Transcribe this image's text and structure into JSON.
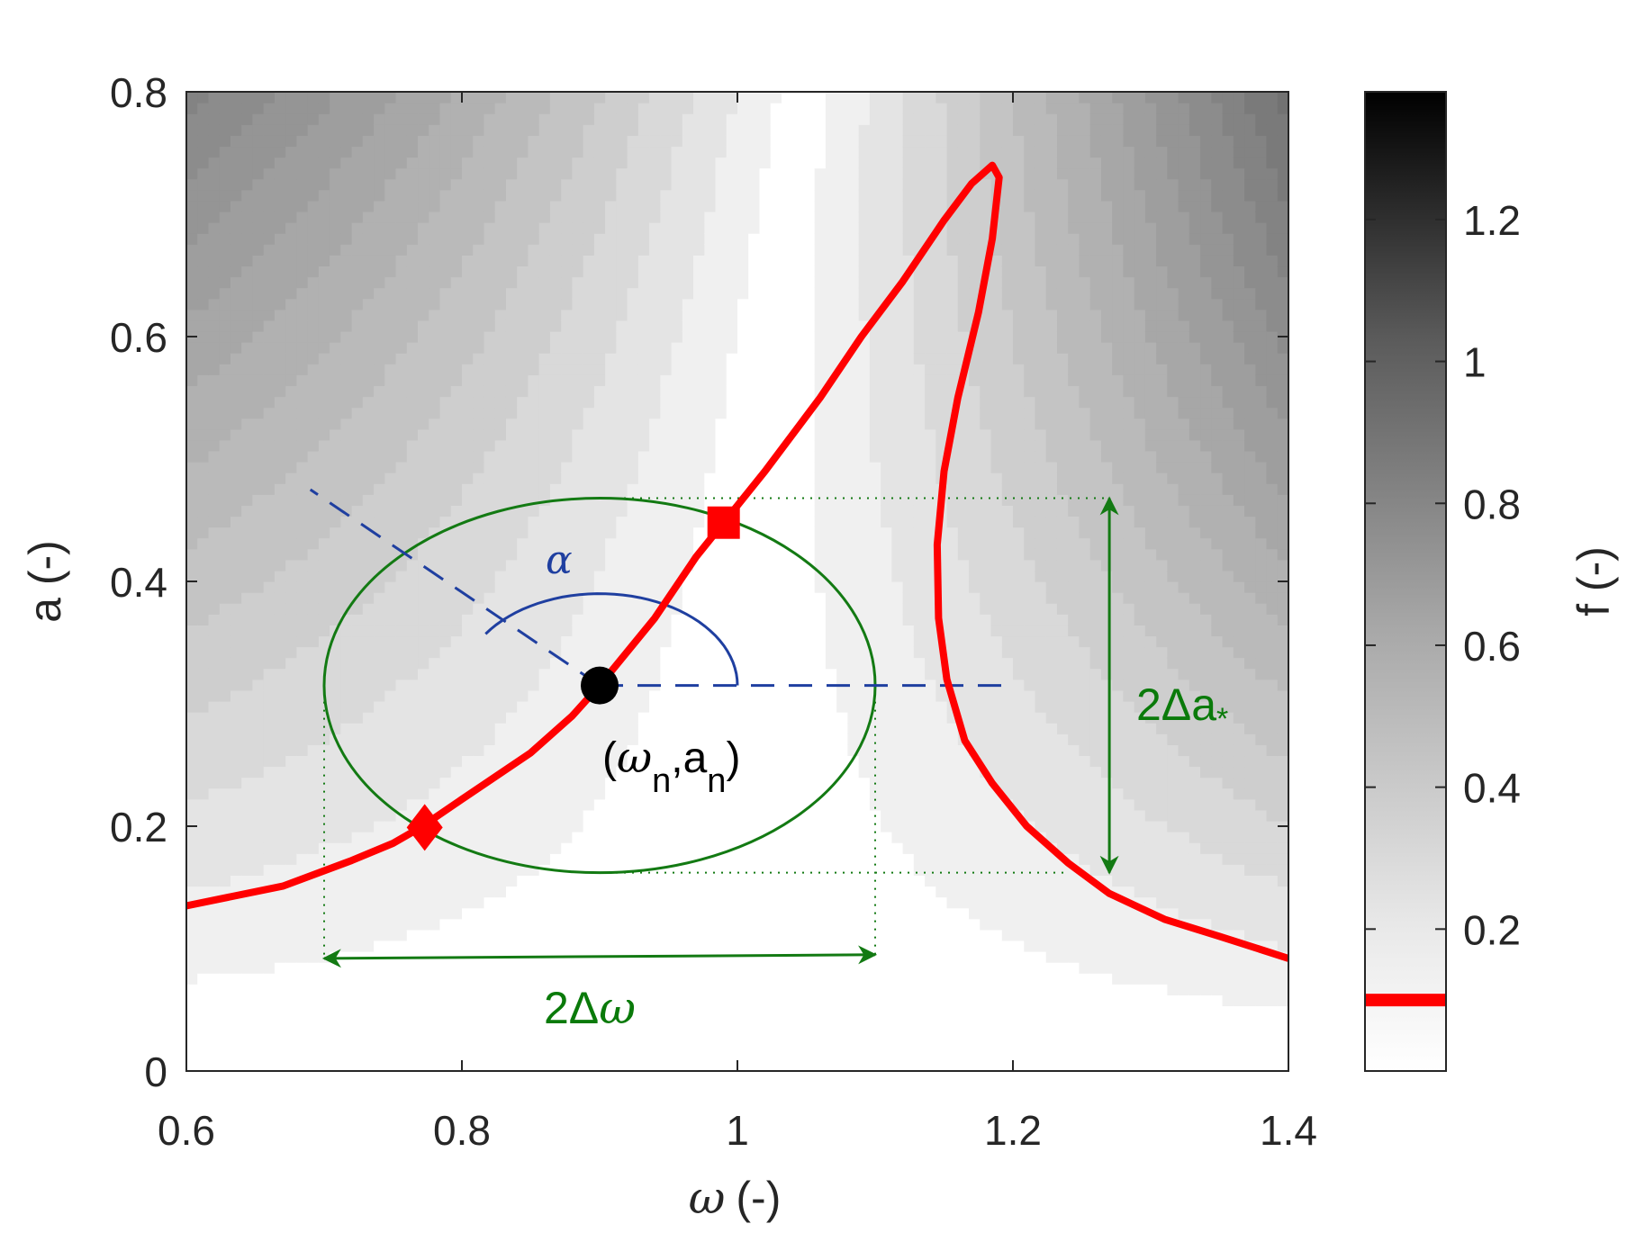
{
  "chart_data": {
    "type": "contour",
    "xlabel_symbol": "ω",
    "xlabel_unit": "(-)",
    "ylabel": "a (-)",
    "xlim": [
      0.6,
      1.4
    ],
    "ylim": [
      0,
      0.8
    ],
    "xticks": [
      "0.6",
      "0.8",
      "1",
      "1.2",
      "1.4"
    ],
    "yticks": [
      "0",
      "0.2",
      "0.4",
      "0.6",
      "0.8"
    ],
    "xtick_values": [
      0.6,
      0.8,
      1.0,
      1.2,
      1.4
    ],
    "ytick_values": [
      0,
      0.2,
      0.4,
      0.6,
      0.8
    ],
    "colormap": "gray (white = 0, black = max)",
    "colorbar": {
      "label": "f (-)",
      "range": [
        0,
        1.38
      ],
      "ticks": [
        "0.2",
        "0.4",
        "0.6",
        "0.8",
        "1",
        "1.2"
      ],
      "tick_values": [
        0.2,
        0.4,
        0.6,
        0.8,
        1.0,
        1.2
      ],
      "marker_value": 0.1,
      "marker_color": "#ff0000"
    },
    "field_model": "f = a * |1 - w^2 + (3/4) * 0.2 * a^2| (approx. Duffing force-amplitude surface)",
    "series": [
      {
        "style": "solid",
        "color": "#ff0000",
        "points": [
          [
            0.6,
            0.135
          ],
          [
            0.67,
            0.151
          ],
          [
            0.72,
            0.172
          ],
          [
            0.75,
            0.186
          ],
          [
            0.77,
            0.199
          ],
          [
            0.8,
            0.222
          ],
          [
            0.85,
            0.26
          ],
          [
            0.88,
            0.29
          ],
          [
            0.9,
            0.315
          ],
          [
            0.94,
            0.37
          ],
          [
            0.97,
            0.42
          ],
          [
            0.99,
            0.448
          ],
          [
            1.02,
            0.49
          ],
          [
            1.06,
            0.55
          ],
          [
            1.09,
            0.6
          ],
          [
            1.12,
            0.645
          ],
          [
            1.15,
            0.695
          ],
          [
            1.17,
            0.725
          ],
          [
            1.185,
            0.74
          ],
          [
            1.19,
            0.73
          ],
          [
            1.185,
            0.68
          ],
          [
            1.175,
            0.62
          ],
          [
            1.16,
            0.55
          ],
          [
            1.15,
            0.49
          ],
          [
            1.145,
            0.43
          ],
          [
            1.146,
            0.37
          ],
          [
            1.152,
            0.32
          ],
          [
            1.165,
            0.27
          ],
          [
            1.185,
            0.235
          ],
          [
            1.21,
            0.2
          ],
          [
            1.24,
            0.17
          ],
          [
            1.27,
            0.145
          ],
          [
            1.31,
            0.124
          ],
          [
            1.35,
            0.11
          ],
          [
            1.4,
            0.092
          ]
        ]
      }
    ],
    "markers": [
      {
        "shape": "square",
        "color": "#ff0000",
        "x": 0.99,
        "y": 0.448
      },
      {
        "shape": "diamond",
        "color": "#ff0000",
        "x": 0.773,
        "y": 0.199
      },
      {
        "shape": "circle",
        "color": "#000000",
        "x": 0.9,
        "y": 0.315
      }
    ],
    "ellipse": {
      "cx": 0.9,
      "cy": 0.315,
      "rx": 0.2,
      "ry": 0.153,
      "color": "#137a13"
    },
    "guides": {
      "dashed_horizontal_to_x": 1.2,
      "dashed_diagonal_end": [
        0.69,
        0.475
      ],
      "angle_arc_radius_x": 0.1,
      "angle_arc_radius_y": 0.075,
      "dotted_top_y": 0.468,
      "dotted_bottom_y": 0.162,
      "dotted_left_x": 0.7,
      "dotted_right_x": 1.1,
      "dotted_top_from_x": 0.9,
      "dotted_top_to_x": 1.27,
      "dotted_bottom_from_x": 0.9,
      "dotted_bottom_to_x": 1.24,
      "dotted_vertical_to_y": 0.095,
      "omega_arrow": {
        "x1": 0.7,
        "x2": 1.1,
        "y1": 0.092,
        "y2": 0.095
      },
      "a_arrow": {
        "x": 1.27,
        "y1": 0.468,
        "y2": 0.162
      },
      "guide_blue": "#1f3fa0",
      "guide_green": "#137a13"
    },
    "annotations": {
      "alpha": "α",
      "point_label_open": "(",
      "point_omega": "ω",
      "point_sub_n1": "n",
      "point_comma_a": ",a",
      "point_sub_n2": "n",
      "point_label_close": ")",
      "two_delta_a": "2Δa",
      "star": "*",
      "two_delta_omega_prefix": "2Δ",
      "two_delta_omega_symbol": "ω"
    }
  }
}
